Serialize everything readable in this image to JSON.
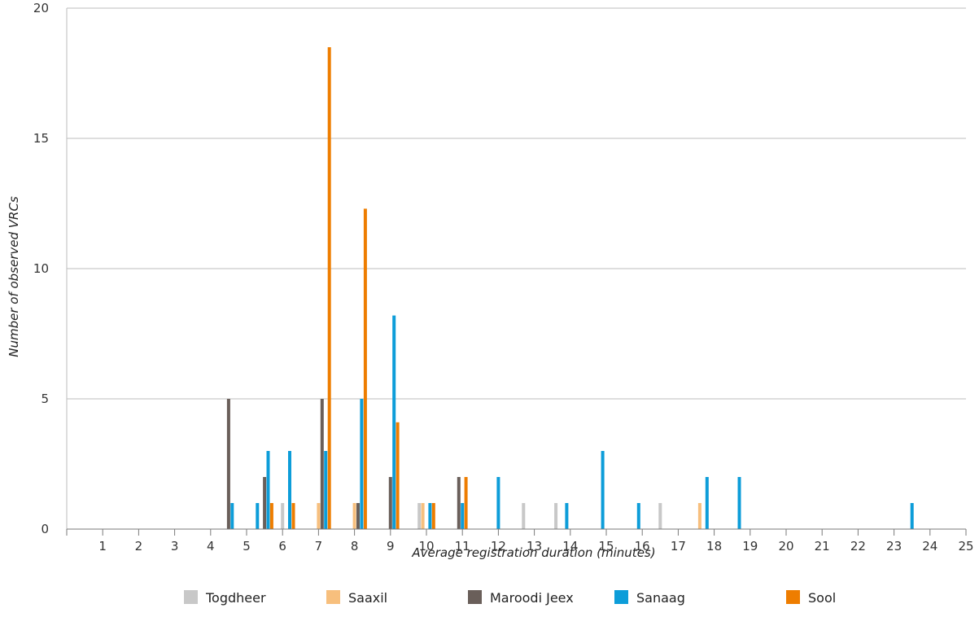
{
  "chart_data": {
    "type": "bar",
    "xlabel": "Average registration duration (minutes)",
    "ylabel": "Number of observed VRCs",
    "xlim": [
      0,
      25
    ],
    "ylim": [
      0,
      20
    ],
    "x_ticks": [
      1,
      2,
      3,
      4,
      5,
      6,
      7,
      8,
      9,
      10,
      11,
      12,
      13,
      14,
      15,
      16,
      17,
      18,
      19,
      20,
      21,
      22,
      23,
      24,
      25
    ],
    "y_ticks": [
      0,
      5,
      10,
      15,
      20
    ],
    "grid": "horizontal",
    "legend_position": "bottom",
    "series": [
      {
        "name": "Togdheer",
        "color": "#c8c8c8",
        "points": [
          [
            6.0,
            1
          ],
          [
            9.8,
            1
          ],
          [
            12.7,
            1
          ],
          [
            13.6,
            1
          ],
          [
            16.5,
            1
          ]
        ]
      },
      {
        "name": "Saaxil",
        "color": "#f7bf7d",
        "points": [
          [
            7.0,
            1
          ],
          [
            8.0,
            1
          ],
          [
            9.9,
            1
          ],
          [
            17.6,
            1
          ]
        ]
      },
      {
        "name": "Maroodi Jeex",
        "color": "#6a5f5a",
        "points": [
          [
            4.5,
            5
          ],
          [
            5.5,
            2
          ],
          [
            6.2,
            2
          ],
          [
            7.1,
            5
          ],
          [
            8.1,
            1
          ],
          [
            9.0,
            2
          ],
          [
            10.9,
            2
          ]
        ]
      },
      {
        "name": "Sanaag",
        "color": "#0d9dd9",
        "points": [
          [
            4.6,
            1
          ],
          [
            5.3,
            1
          ],
          [
            5.6,
            3
          ],
          [
            6.2,
            3
          ],
          [
            7.2,
            3
          ],
          [
            8.2,
            5
          ],
          [
            9.1,
            8.2
          ],
          [
            10.1,
            1
          ],
          [
            11.0,
            1
          ],
          [
            12.0,
            2
          ],
          [
            13.9,
            1
          ],
          [
            14.9,
            3
          ],
          [
            15.9,
            1
          ],
          [
            17.8,
            2
          ],
          [
            18.7,
            2
          ],
          [
            23.5,
            1
          ]
        ]
      },
      {
        "name": "Sool",
        "color": "#ee7d00",
        "points": [
          [
            5.7,
            1
          ],
          [
            6.3,
            1
          ],
          [
            7.3,
            18.5
          ],
          [
            8.3,
            12.3
          ],
          [
            9.2,
            4.1
          ],
          [
            10.2,
            1
          ],
          [
            11.1,
            2
          ]
        ]
      }
    ]
  }
}
